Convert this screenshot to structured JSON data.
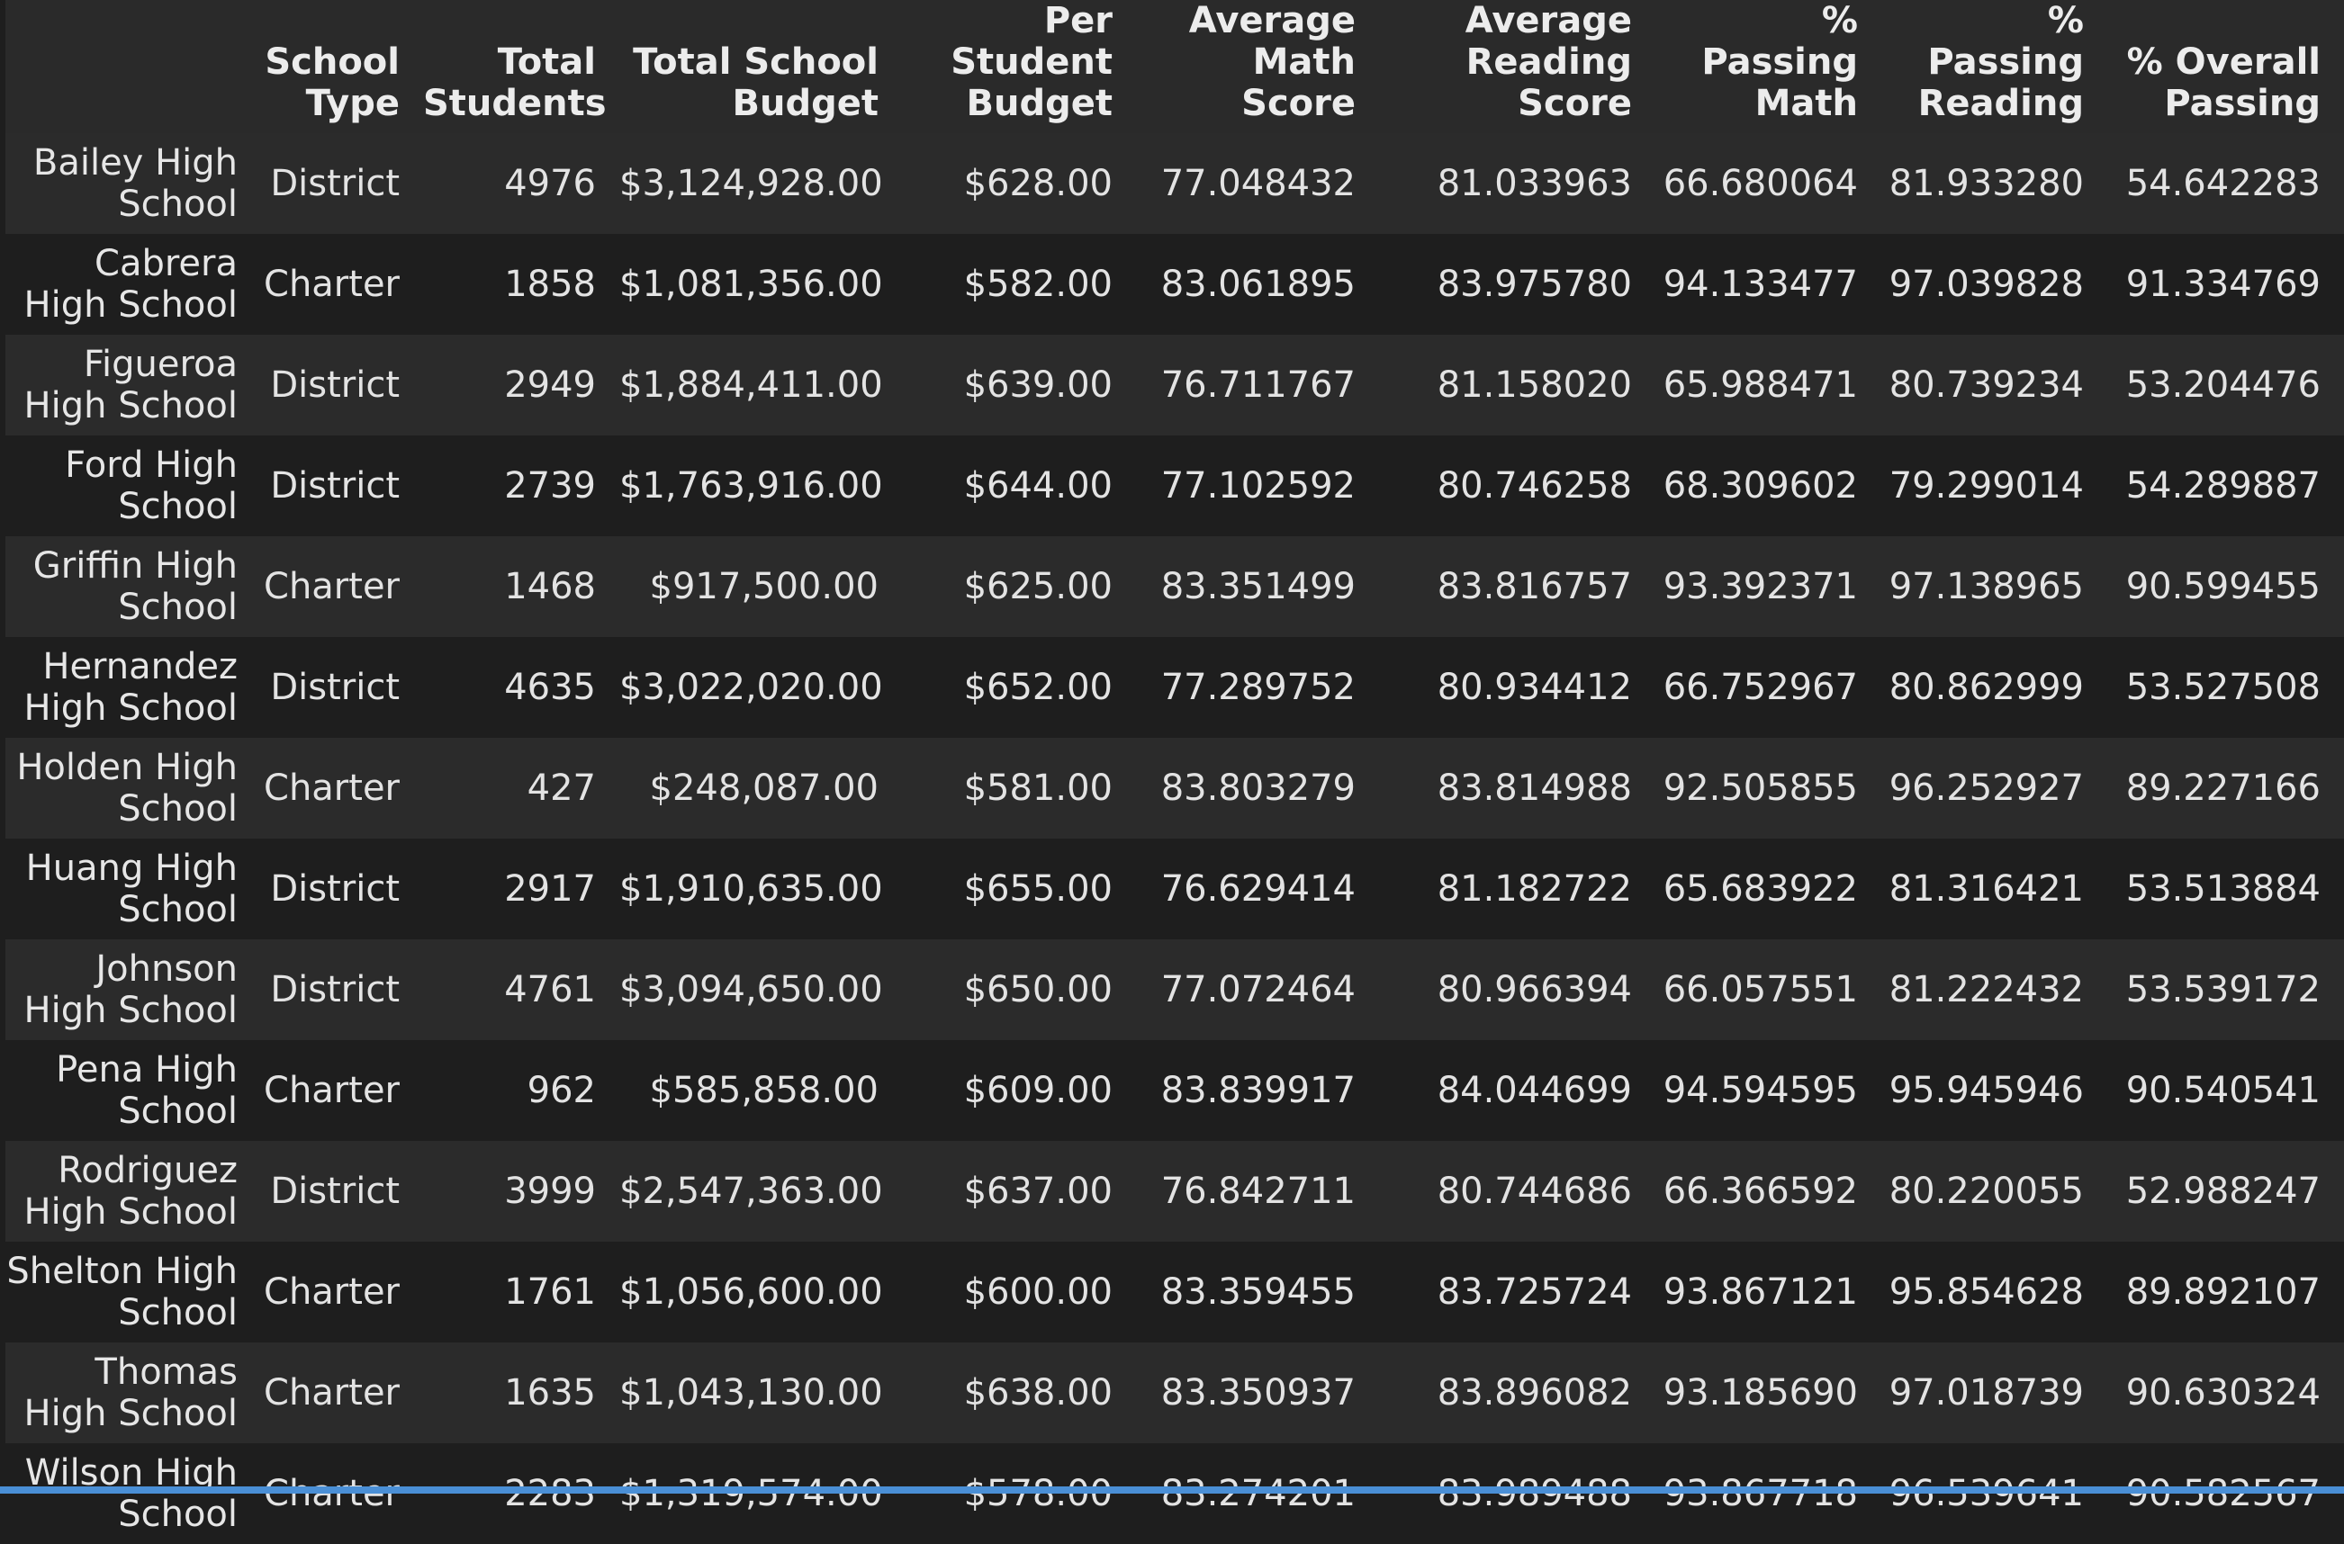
{
  "table": {
    "columns": [
      "",
      "School Type",
      "Total Students",
      "Total School Budget",
      "Per Student Budget",
      "Average Math Score",
      "Average Reading Score",
      "% Passing Math",
      "% Passing Reading",
      "% Overall Passing"
    ],
    "rows": [
      {
        "school": "Bailey High School",
        "values": [
          "District",
          "4976",
          "$3,124,928.00",
          "$628.00",
          "77.048432",
          "81.033963",
          "66.680064",
          "81.933280",
          "54.642283"
        ]
      },
      {
        "school": "Cabrera High School",
        "values": [
          "Charter",
          "1858",
          "$1,081,356.00",
          "$582.00",
          "83.061895",
          "83.975780",
          "94.133477",
          "97.039828",
          "91.334769"
        ]
      },
      {
        "school": "Figueroa High School",
        "values": [
          "District",
          "2949",
          "$1,884,411.00",
          "$639.00",
          "76.711767",
          "81.158020",
          "65.988471",
          "80.739234",
          "53.204476"
        ]
      },
      {
        "school": "Ford High School",
        "values": [
          "District",
          "2739",
          "$1,763,916.00",
          "$644.00",
          "77.102592",
          "80.746258",
          "68.309602",
          "79.299014",
          "54.289887"
        ]
      },
      {
        "school": "Griffin High School",
        "values": [
          "Charter",
          "1468",
          "$917,500.00",
          "$625.00",
          "83.351499",
          "83.816757",
          "93.392371",
          "97.138965",
          "90.599455"
        ]
      },
      {
        "school": "Hernandez High School",
        "values": [
          "District",
          "4635",
          "$3,022,020.00",
          "$652.00",
          "77.289752",
          "80.934412",
          "66.752967",
          "80.862999",
          "53.527508"
        ]
      },
      {
        "school": "Holden High School",
        "values": [
          "Charter",
          "427",
          "$248,087.00",
          "$581.00",
          "83.803279",
          "83.814988",
          "92.505855",
          "96.252927",
          "89.227166"
        ]
      },
      {
        "school": "Huang High School",
        "values": [
          "District",
          "2917",
          "$1,910,635.00",
          "$655.00",
          "76.629414",
          "81.182722",
          "65.683922",
          "81.316421",
          "53.513884"
        ]
      },
      {
        "school": "Johnson High School",
        "values": [
          "District",
          "4761",
          "$3,094,650.00",
          "$650.00",
          "77.072464",
          "80.966394",
          "66.057551",
          "81.222432",
          "53.539172"
        ]
      },
      {
        "school": "Pena High School",
        "values": [
          "Charter",
          "962",
          "$585,858.00",
          "$609.00",
          "83.839917",
          "84.044699",
          "94.594595",
          "95.945946",
          "90.540541"
        ]
      },
      {
        "school": "Rodriguez High School",
        "values": [
          "District",
          "3999",
          "$2,547,363.00",
          "$637.00",
          "76.842711",
          "80.744686",
          "66.366592",
          "80.220055",
          "52.988247"
        ]
      },
      {
        "school": "Shelton High School",
        "values": [
          "Charter",
          "1761",
          "$1,056,600.00",
          "$600.00",
          "83.359455",
          "83.725724",
          "93.867121",
          "95.854628",
          "89.892107"
        ]
      },
      {
        "school": "Thomas High School",
        "values": [
          "Charter",
          "1635",
          "$1,043,130.00",
          "$638.00",
          "83.350937",
          "83.896082",
          "93.185690",
          "97.018739",
          "90.630324"
        ]
      },
      {
        "school": "Wilson High School",
        "values": [
          "Charter",
          "2283",
          "$1,319,574.00",
          "$578.00",
          "83.274201",
          "83.989488",
          "93.867718",
          "96.539641",
          "90.582567"
        ]
      }
    ]
  },
  "theme": {
    "background": "#1e1e1e",
    "header_background": "#2a2a2a",
    "row_alt_background": "#2b2b2b",
    "text": "#e3e3e3",
    "accent_bar": "#4a8fd6"
  }
}
